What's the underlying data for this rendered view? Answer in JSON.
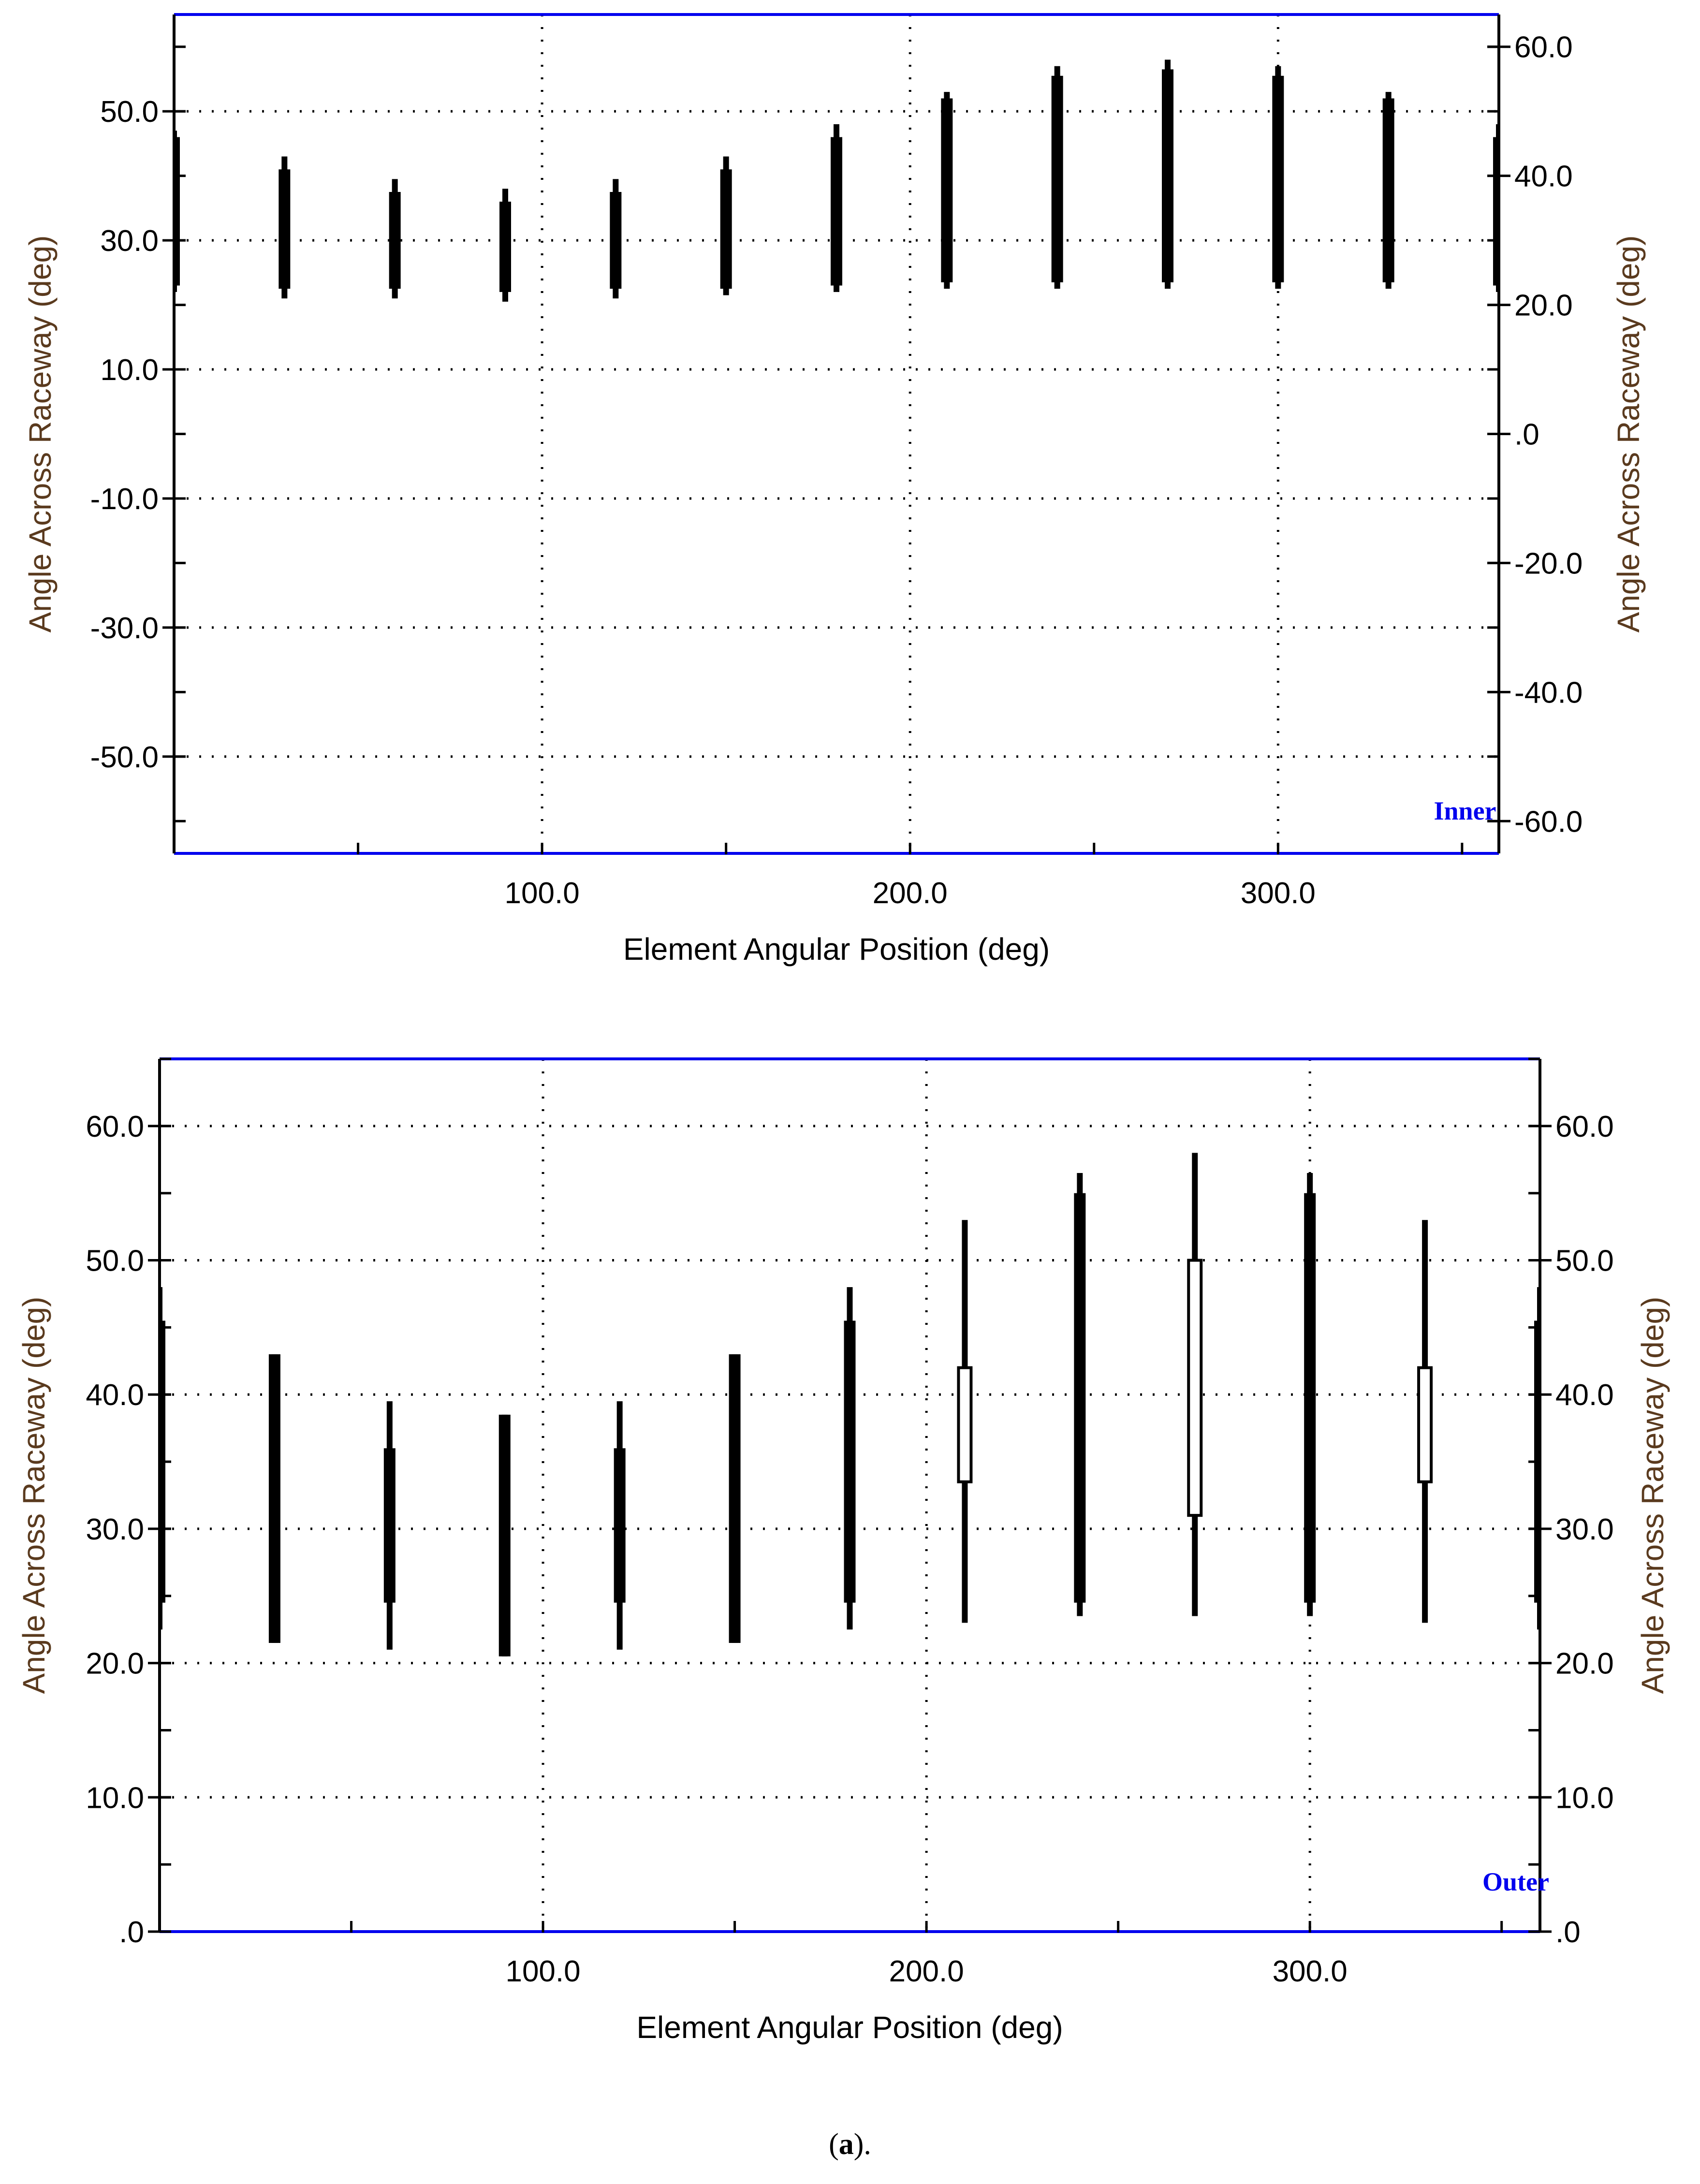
{
  "chart_data": [
    {
      "type": "bar",
      "panel_label": "Inner",
      "xlabel": "Element Angular Position (deg)",
      "ylabel": "Angle Across Raceway (deg)",
      "ylabel_right": "Angle Across Raceway (deg)",
      "xlim": [
        0,
        360
      ],
      "ylim_left": [
        -65,
        65
      ],
      "ylim_right": [
        -65,
        65
      ],
      "x_ticks": [
        "100.0",
        "200.0",
        "300.0"
      ],
      "y_ticks_left": [
        "50.0",
        "30.0",
        "10.0",
        "-10.0",
        "-30.0",
        "-50.0"
      ],
      "y_ticks_right": [
        "60.0",
        "40.0",
        "20.0",
        ".0",
        "-20.0",
        "-40.0",
        "-60.0"
      ],
      "grid": true,
      "colors": {
        "frame": "#0000ee",
        "label_text": "#5a3a1e",
        "bar": "#000000",
        "panel_label": "#0000ee"
      },
      "bars": [
        {
          "x": 0,
          "outer": [
            22,
            47
          ],
          "inner": [
            23,
            46
          ],
          "style": "solid"
        },
        {
          "x": 30,
          "outer": [
            21,
            43
          ],
          "inner": [
            22.5,
            41
          ],
          "style": "solid"
        },
        {
          "x": 60,
          "outer": [
            21,
            39.5
          ],
          "inner": [
            22.5,
            37.5
          ],
          "style": "solid"
        },
        {
          "x": 90,
          "outer": [
            20.5,
            38
          ],
          "inner": [
            22,
            36
          ],
          "style": "solid"
        },
        {
          "x": 120,
          "outer": [
            21,
            39.5
          ],
          "inner": [
            22.5,
            37.5
          ],
          "style": "solid"
        },
        {
          "x": 150,
          "outer": [
            21.5,
            43
          ],
          "inner": [
            22.5,
            41
          ],
          "style": "solid"
        },
        {
          "x": 180,
          "outer": [
            22,
            48
          ],
          "inner": [
            23,
            46
          ],
          "style": "solid"
        },
        {
          "x": 210,
          "outer": [
            22.5,
            53
          ],
          "inner": [
            23.5,
            52
          ],
          "style": "solid"
        },
        {
          "x": 240,
          "outer": [
            22.5,
            57
          ],
          "inner": [
            23.5,
            55.5
          ],
          "style": "solid"
        },
        {
          "x": 270,
          "outer": [
            22.5,
            58
          ],
          "inner": [
            23.5,
            56.5
          ],
          "style": "solid"
        },
        {
          "x": 300,
          "outer": [
            22.5,
            57
          ],
          "inner": [
            23.5,
            55.5
          ],
          "style": "solid"
        },
        {
          "x": 330,
          "outer": [
            22.5,
            53
          ],
          "inner": [
            23.5,
            52
          ],
          "style": "solid"
        },
        {
          "x": 360,
          "outer": [
            22,
            48
          ],
          "inner": [
            23,
            46
          ],
          "style": "solid"
        }
      ]
    },
    {
      "type": "bar",
      "panel_label": "Outer",
      "xlabel": "Element Angular Position (deg)",
      "ylabel": "Angle Across Raceway (deg)",
      "ylabel_right": "Angle Across Raceway (deg)",
      "xlim": [
        0,
        360
      ],
      "ylim_left": [
        0,
        65
      ],
      "ylim_right": [
        0,
        65
      ],
      "x_ticks": [
        "100.0",
        "200.0",
        "300.0"
      ],
      "y_ticks_left": [
        "60.0",
        "50.0",
        "40.0",
        "30.0",
        "20.0",
        "10.0",
        ".0"
      ],
      "y_ticks_right": [
        "60.0",
        "50.0",
        "40.0",
        "30.0",
        "20.0",
        "10.0",
        ".0"
      ],
      "grid": true,
      "colors": {
        "frame": "#0000ee",
        "label_text": "#5a3a1e",
        "bar": "#000000",
        "panel_label": "#0000ee"
      },
      "bars": [
        {
          "x": 0,
          "outer": [
            22.5,
            48
          ],
          "inner": [
            24.5,
            45.5
          ],
          "style": "solid"
        },
        {
          "x": 30,
          "outer": [
            21.5,
            43
          ],
          "inner": [
            21.5,
            43
          ],
          "style": "solid"
        },
        {
          "x": 60,
          "outer": [
            21,
            39.5
          ],
          "inner": [
            24.5,
            36
          ],
          "style": "solid"
        },
        {
          "x": 90,
          "outer": [
            20.5,
            38.5
          ],
          "inner": [
            20.5,
            38.5
          ],
          "style": "solid"
        },
        {
          "x": 120,
          "outer": [
            21,
            39.5
          ],
          "inner": [
            24.5,
            36
          ],
          "style": "solid"
        },
        {
          "x": 150,
          "outer": [
            21.5,
            43
          ],
          "inner": [
            21.5,
            43
          ],
          "style": "solid"
        },
        {
          "x": 180,
          "outer": [
            22.5,
            48
          ],
          "inner": [
            24.5,
            45.5
          ],
          "style": "solid"
        },
        {
          "x": 210,
          "outer": [
            23,
            53
          ],
          "inner": [
            33.5,
            42
          ],
          "style": "hollow"
        },
        {
          "x": 240,
          "outer": [
            23.5,
            56.5
          ],
          "inner": [
            24.5,
            55
          ],
          "style": "solid"
        },
        {
          "x": 270,
          "outer": [
            23.5,
            58
          ],
          "inner": [
            31,
            50
          ],
          "style": "hollow"
        },
        {
          "x": 300,
          "outer": [
            23.5,
            56.5
          ],
          "inner": [
            24.5,
            55
          ],
          "style": "solid"
        },
        {
          "x": 330,
          "outer": [
            23,
            53
          ],
          "inner": [
            33.5,
            42
          ],
          "style": "hollow"
        },
        {
          "x": 360,
          "outer": [
            22.5,
            48
          ],
          "inner": [
            24.5,
            45.5
          ],
          "style": "solid"
        }
      ]
    }
  ],
  "caption": {
    "open": "(",
    "letter": "a",
    "close": ")."
  }
}
